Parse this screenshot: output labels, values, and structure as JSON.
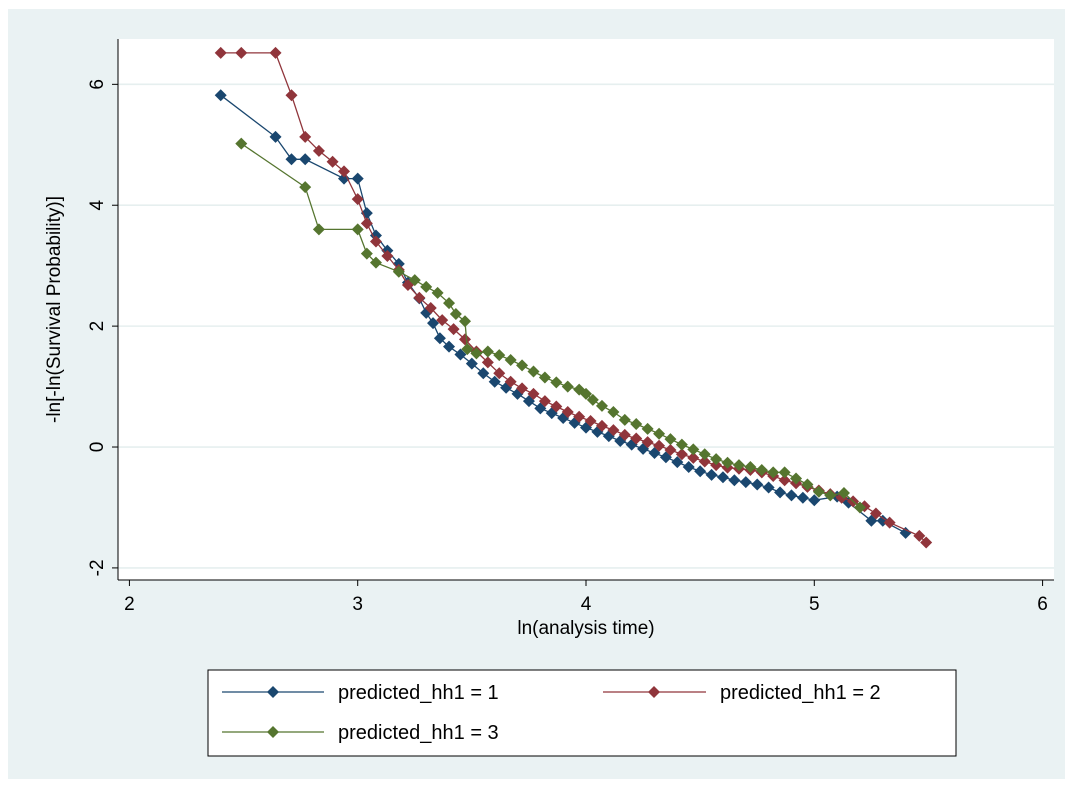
{
  "chart_data": {
    "type": "line",
    "title": "",
    "xlabel": "ln(analysis time)",
    "ylabel": "-ln[-ln(Survival Probability)]",
    "xlim": [
      1.95,
      6.05
    ],
    "ylim": [
      -2.2,
      6.75
    ],
    "xticks": [
      2,
      3,
      4,
      5,
      6
    ],
    "yticks": [
      -2,
      0,
      2,
      4,
      6
    ],
    "grid": "horizontal",
    "legend_position": "bottom",
    "background_color": "#eaf2f3",
    "plot_background_color": "#ffffff",
    "series": [
      {
        "name": "predicted_hh1 = 1",
        "color": "#1a476f",
        "marker": "diamond",
        "points": [
          [
            2.4,
            5.82
          ],
          [
            2.64,
            5.13
          ],
          [
            2.71,
            4.76
          ],
          [
            2.77,
            4.76
          ],
          [
            2.94,
            4.44
          ],
          [
            3.0,
            4.44
          ],
          [
            3.04,
            3.87
          ],
          [
            3.08,
            3.5
          ],
          [
            3.13,
            3.25
          ],
          [
            3.18,
            3.03
          ],
          [
            3.22,
            2.72
          ],
          [
            3.27,
            2.46
          ],
          [
            3.3,
            2.22
          ],
          [
            3.33,
            2.05
          ],
          [
            3.36,
            1.8
          ],
          [
            3.4,
            1.66
          ],
          [
            3.45,
            1.53
          ],
          [
            3.5,
            1.38
          ],
          [
            3.55,
            1.22
          ],
          [
            3.6,
            1.08
          ],
          [
            3.65,
            0.98
          ],
          [
            3.7,
            0.88
          ],
          [
            3.75,
            0.76
          ],
          [
            3.8,
            0.64
          ],
          [
            3.85,
            0.56
          ],
          [
            3.9,
            0.48
          ],
          [
            3.95,
            0.4
          ],
          [
            4.0,
            0.32
          ],
          [
            4.05,
            0.25
          ],
          [
            4.1,
            0.18
          ],
          [
            4.15,
            0.1
          ],
          [
            4.2,
            0.04
          ],
          [
            4.25,
            -0.03
          ],
          [
            4.3,
            -0.1
          ],
          [
            4.35,
            -0.17
          ],
          [
            4.4,
            -0.25
          ],
          [
            4.45,
            -0.33
          ],
          [
            4.5,
            -0.4
          ],
          [
            4.55,
            -0.46
          ],
          [
            4.6,
            -0.5
          ],
          [
            4.65,
            -0.55
          ],
          [
            4.7,
            -0.58
          ],
          [
            4.75,
            -0.62
          ],
          [
            4.8,
            -0.67
          ],
          [
            4.85,
            -0.75
          ],
          [
            4.9,
            -0.8
          ],
          [
            4.95,
            -0.84
          ],
          [
            5.0,
            -0.88
          ],
          [
            5.1,
            -0.82
          ],
          [
            5.15,
            -0.92
          ],
          [
            5.25,
            -1.22
          ],
          [
            5.3,
            -1.22
          ],
          [
            5.4,
            -1.42
          ]
        ]
      },
      {
        "name": "predicted_hh1 = 2",
        "color": "#90353b",
        "marker": "diamond",
        "points": [
          [
            2.4,
            6.52
          ],
          [
            2.49,
            6.52
          ],
          [
            2.64,
            6.52
          ],
          [
            2.71,
            5.82
          ],
          [
            2.77,
            5.13
          ],
          [
            2.83,
            4.9
          ],
          [
            2.89,
            4.72
          ],
          [
            2.94,
            4.56
          ],
          [
            3.0,
            4.1
          ],
          [
            3.04,
            3.7
          ],
          [
            3.08,
            3.4
          ],
          [
            3.13,
            3.16
          ],
          [
            3.18,
            2.93
          ],
          [
            3.22,
            2.68
          ],
          [
            3.27,
            2.47
          ],
          [
            3.32,
            2.3
          ],
          [
            3.37,
            2.1
          ],
          [
            3.42,
            1.95
          ],
          [
            3.47,
            1.78
          ],
          [
            3.52,
            1.58
          ],
          [
            3.57,
            1.4
          ],
          [
            3.62,
            1.22
          ],
          [
            3.67,
            1.08
          ],
          [
            3.72,
            0.97
          ],
          [
            3.77,
            0.88
          ],
          [
            3.82,
            0.76
          ],
          [
            3.87,
            0.67
          ],
          [
            3.92,
            0.58
          ],
          [
            3.97,
            0.5
          ],
          [
            4.02,
            0.43
          ],
          [
            4.07,
            0.35
          ],
          [
            4.12,
            0.28
          ],
          [
            4.17,
            0.2
          ],
          [
            4.22,
            0.14
          ],
          [
            4.27,
            0.08
          ],
          [
            4.32,
            0.02
          ],
          [
            4.37,
            -0.05
          ],
          [
            4.42,
            -0.12
          ],
          [
            4.47,
            -0.18
          ],
          [
            4.52,
            -0.24
          ],
          [
            4.57,
            -0.3
          ],
          [
            4.62,
            -0.34
          ],
          [
            4.67,
            -0.36
          ],
          [
            4.72,
            -0.38
          ],
          [
            4.77,
            -0.42
          ],
          [
            4.82,
            -0.48
          ],
          [
            4.87,
            -0.55
          ],
          [
            4.92,
            -0.6
          ],
          [
            4.97,
            -0.66
          ],
          [
            5.02,
            -0.72
          ],
          [
            5.07,
            -0.78
          ],
          [
            5.12,
            -0.84
          ],
          [
            5.17,
            -0.9
          ],
          [
            5.22,
            -0.98
          ],
          [
            5.27,
            -1.1
          ],
          [
            5.33,
            -1.25
          ],
          [
            5.46,
            -1.47
          ],
          [
            5.49,
            -1.58
          ]
        ]
      },
      {
        "name": "predicted_hh1 = 3",
        "color": "#55752f",
        "marker": "diamond",
        "points": [
          [
            2.49,
            5.02
          ],
          [
            2.77,
            4.3
          ],
          [
            2.83,
            3.6
          ],
          [
            3.0,
            3.6
          ],
          [
            3.04,
            3.2
          ],
          [
            3.08,
            3.05
          ],
          [
            3.18,
            2.9
          ],
          [
            3.25,
            2.76
          ],
          [
            3.3,
            2.65
          ],
          [
            3.35,
            2.55
          ],
          [
            3.4,
            2.38
          ],
          [
            3.43,
            2.2
          ],
          [
            3.47,
            2.08
          ],
          [
            3.48,
            1.62
          ],
          [
            3.52,
            1.55
          ],
          [
            3.57,
            1.58
          ],
          [
            3.62,
            1.52
          ],
          [
            3.67,
            1.44
          ],
          [
            3.72,
            1.35
          ],
          [
            3.77,
            1.25
          ],
          [
            3.82,
            1.15
          ],
          [
            3.87,
            1.07
          ],
          [
            3.92,
            1.0
          ],
          [
            3.97,
            0.95
          ],
          [
            4.0,
            0.88
          ],
          [
            4.03,
            0.78
          ],
          [
            4.07,
            0.68
          ],
          [
            4.12,
            0.58
          ],
          [
            4.17,
            0.45
          ],
          [
            4.22,
            0.38
          ],
          [
            4.27,
            0.3
          ],
          [
            4.32,
            0.22
          ],
          [
            4.37,
            0.13
          ],
          [
            4.42,
            0.04
          ],
          [
            4.47,
            -0.04
          ],
          [
            4.52,
            -0.12
          ],
          [
            4.57,
            -0.2
          ],
          [
            4.62,
            -0.26
          ],
          [
            4.67,
            -0.3
          ],
          [
            4.72,
            -0.33
          ],
          [
            4.77,
            -0.38
          ],
          [
            4.82,
            -0.42
          ],
          [
            4.87,
            -0.42
          ],
          [
            4.92,
            -0.52
          ],
          [
            4.97,
            -0.62
          ],
          [
            5.02,
            -0.74
          ],
          [
            5.07,
            -0.8
          ],
          [
            5.13,
            -0.76
          ],
          [
            5.2,
            -1.0
          ]
        ]
      }
    ]
  }
}
